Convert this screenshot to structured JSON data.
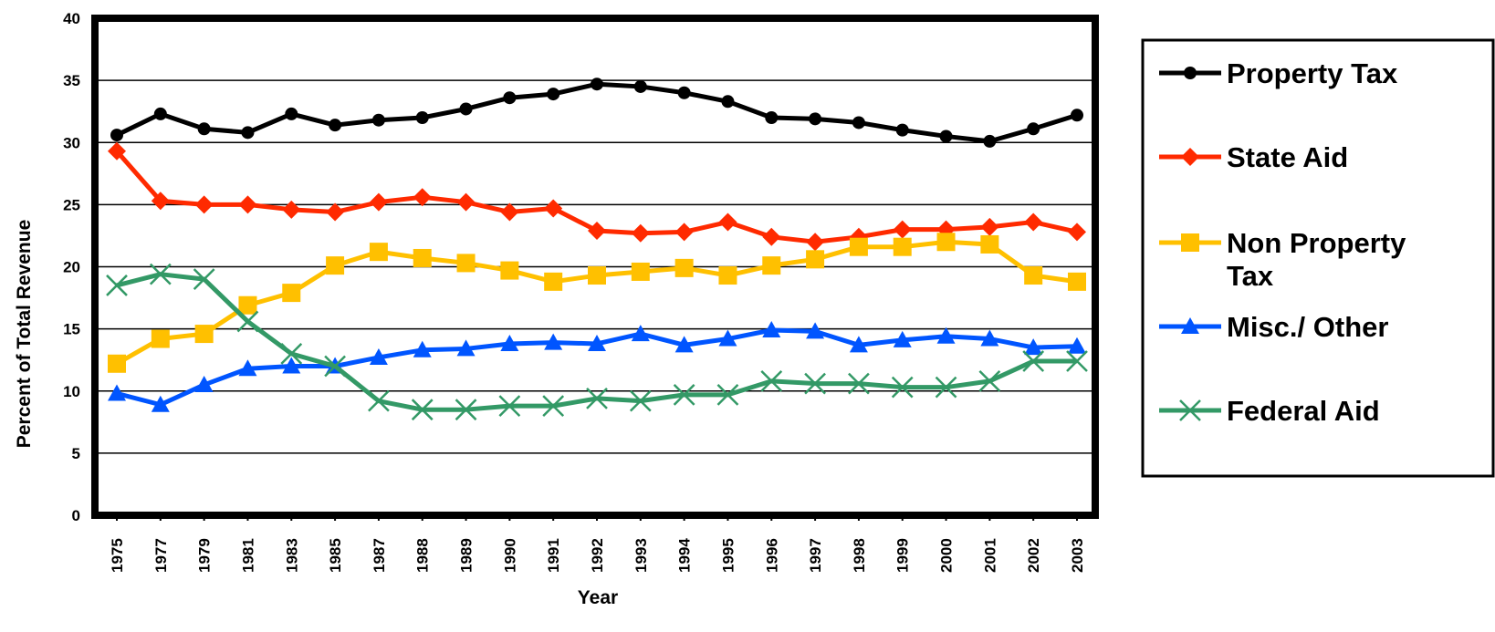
{
  "chart_data": {
    "type": "line",
    "title": "",
    "xlabel": "Year",
    "ylabel": "Percent of Total Revenue",
    "ylim": [
      0,
      40
    ],
    "yticks": [
      "0",
      "5",
      "10",
      "15",
      "20",
      "25",
      "30",
      "35",
      "40"
    ],
    "grid": "horizontal",
    "legend_position": "right",
    "categories": [
      "1975",
      "1977",
      "1979",
      "1981",
      "1983",
      "1985",
      "1987",
      "1988",
      "1989",
      "1990",
      "1991",
      "1992",
      "1993",
      "1994",
      "1995",
      "1996",
      "1997",
      "1998",
      "1999",
      "2000",
      "2001",
      "2002",
      "2003"
    ],
    "series": [
      {
        "name": "Property Tax",
        "color": "#000000",
        "marker": "circle",
        "values": [
          30.6,
          32.3,
          31.1,
          30.8,
          32.3,
          31.4,
          31.8,
          32.0,
          32.7,
          33.6,
          33.9,
          34.7,
          34.5,
          34.0,
          33.3,
          32.0,
          31.9,
          31.6,
          31.0,
          30.5,
          30.1,
          31.1,
          32.2
        ]
      },
      {
        "name": "State Aid",
        "color": "#ff2a00",
        "marker": "diamond",
        "values": [
          29.3,
          25.3,
          25.0,
          25.0,
          24.6,
          24.4,
          25.2,
          25.6,
          25.2,
          24.4,
          24.7,
          22.9,
          22.7,
          22.8,
          23.6,
          22.4,
          22.0,
          22.4,
          23.0,
          23.0,
          23.2,
          23.6,
          22.8
        ]
      },
      {
        "name": "Non Property Tax",
        "color": "#ffc000",
        "marker": "square",
        "values": [
          12.2,
          14.2,
          14.6,
          16.9,
          17.9,
          20.1,
          21.2,
          20.7,
          20.3,
          19.7,
          18.8,
          19.3,
          19.6,
          19.9,
          19.3,
          20.1,
          20.6,
          21.6,
          21.6,
          22.0,
          21.8,
          19.3,
          18.8
        ]
      },
      {
        "name": "Misc./ Other",
        "color": "#0055ff",
        "marker": "triangle",
        "values": [
          9.8,
          8.9,
          10.5,
          11.8,
          12.0,
          12.0,
          12.7,
          13.3,
          13.4,
          13.8,
          13.9,
          13.8,
          14.6,
          13.7,
          14.2,
          14.9,
          14.8,
          13.7,
          14.1,
          14.4,
          14.2,
          13.5,
          13.6
        ]
      },
      {
        "name": "Federal Aid",
        "color": "#339966",
        "marker": "x",
        "values": [
          18.5,
          19.4,
          19.0,
          15.6,
          13.0,
          12.0,
          9.2,
          8.5,
          8.5,
          8.8,
          8.8,
          9.4,
          9.2,
          9.7,
          9.7,
          10.8,
          10.6,
          10.6,
          10.3,
          10.3,
          10.8,
          12.4,
          12.4
        ]
      }
    ]
  },
  "legend": {
    "items": [
      {
        "lines": [
          "Property Tax"
        ]
      },
      {
        "lines": [
          "State Aid"
        ]
      },
      {
        "lines": [
          "Non Property",
          "Tax"
        ]
      },
      {
        "lines": [
          "Misc./ Other"
        ]
      },
      {
        "lines": [
          "Federal Aid"
        ]
      }
    ]
  }
}
